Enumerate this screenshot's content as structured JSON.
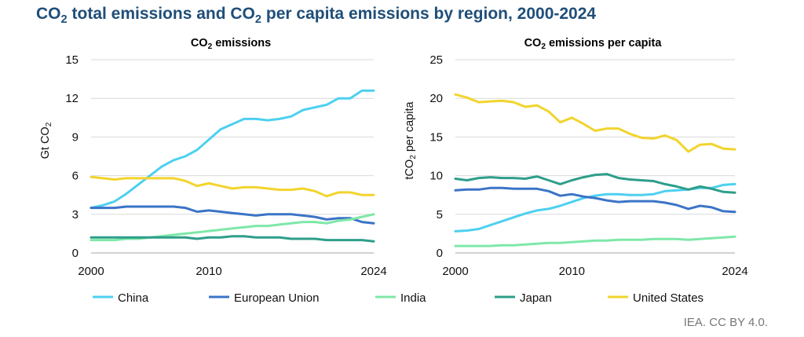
{
  "title": {
    "part1": "CO",
    "sub": "2",
    "part2": " total emissions and CO",
    "sub2": "2",
    "part3": " per capita emissions by region, 2000-2024"
  },
  "source": "IEA. CC BY 4.0.",
  "colors": {
    "China": "#4dd0f0",
    "European Union": "#3b74c7",
    "India": "#7ee8a8",
    "Japan": "#2e9e8a",
    "United States": "#f2d42e",
    "grid": "#d9d9d9"
  },
  "legend": [
    "China",
    "European Union",
    "India",
    "Japan",
    "United States"
  ],
  "chart_data": [
    {
      "type": "line",
      "title": "CO₂ emissions",
      "ylabel": "Gt CO₂",
      "xlabel": "",
      "x": [
        2000,
        2001,
        2002,
        2003,
        2004,
        2005,
        2006,
        2007,
        2008,
        2009,
        2010,
        2011,
        2012,
        2013,
        2014,
        2015,
        2016,
        2017,
        2018,
        2019,
        2020,
        2021,
        2022,
        2023,
        2024
      ],
      "xticks": [
        2000,
        2010,
        2024
      ],
      "ylim": [
        0,
        15
      ],
      "yticks": [
        0,
        3,
        6,
        9,
        12,
        15
      ],
      "grid": true,
      "legend_position": "bottom",
      "series": [
        {
          "name": "China",
          "values": [
            3.5,
            3.7,
            4.0,
            4.6,
            5.3,
            6.0,
            6.7,
            7.2,
            7.5,
            8.0,
            8.8,
            9.6,
            10.0,
            10.4,
            10.4,
            10.3,
            10.4,
            10.6,
            11.1,
            11.3,
            11.5,
            12.0,
            12.0,
            12.6,
            12.6
          ]
        },
        {
          "name": "European Union",
          "values": [
            3.5,
            3.5,
            3.5,
            3.6,
            3.6,
            3.6,
            3.6,
            3.6,
            3.5,
            3.2,
            3.3,
            3.2,
            3.1,
            3.0,
            2.9,
            3.0,
            3.0,
            3.0,
            2.9,
            2.8,
            2.6,
            2.7,
            2.7,
            2.4,
            2.3
          ]
        },
        {
          "name": "India",
          "values": [
            1.0,
            1.0,
            1.0,
            1.1,
            1.1,
            1.2,
            1.3,
            1.4,
            1.5,
            1.6,
            1.7,
            1.8,
            1.9,
            2.0,
            2.1,
            2.1,
            2.2,
            2.3,
            2.4,
            2.4,
            2.3,
            2.5,
            2.6,
            2.8,
            3.0
          ]
        },
        {
          "name": "Japan",
          "values": [
            1.2,
            1.2,
            1.2,
            1.2,
            1.2,
            1.2,
            1.2,
            1.2,
            1.2,
            1.1,
            1.2,
            1.2,
            1.3,
            1.3,
            1.2,
            1.2,
            1.2,
            1.1,
            1.1,
            1.1,
            1.0,
            1.0,
            1.0,
            1.0,
            0.9
          ]
        },
        {
          "name": "United States",
          "values": [
            5.9,
            5.8,
            5.7,
            5.8,
            5.8,
            5.8,
            5.8,
            5.8,
            5.6,
            5.2,
            5.4,
            5.2,
            5.0,
            5.1,
            5.1,
            5.0,
            4.9,
            4.9,
            5.0,
            4.8,
            4.4,
            4.7,
            4.7,
            4.5,
            4.5
          ]
        }
      ]
    },
    {
      "type": "line",
      "title": "CO₂ emissions per capita",
      "ylabel": "tCO₂ per capita",
      "xlabel": "",
      "x": [
        2000,
        2001,
        2002,
        2003,
        2004,
        2005,
        2006,
        2007,
        2008,
        2009,
        2010,
        2011,
        2012,
        2013,
        2014,
        2015,
        2016,
        2017,
        2018,
        2019,
        2020,
        2021,
        2022,
        2023,
        2024
      ],
      "xticks": [
        2000,
        2010,
        2024
      ],
      "ylim": [
        0,
        25
      ],
      "yticks": [
        0,
        5,
        10,
        15,
        20,
        25
      ],
      "grid": true,
      "legend_position": "bottom",
      "series": [
        {
          "name": "China",
          "values": [
            2.8,
            2.9,
            3.1,
            3.6,
            4.1,
            4.6,
            5.1,
            5.5,
            5.7,
            6.1,
            6.6,
            7.1,
            7.4,
            7.6,
            7.6,
            7.5,
            7.5,
            7.6,
            8.0,
            8.1,
            8.2,
            8.4,
            8.4,
            8.8,
            8.9
          ]
        },
        {
          "name": "European Union",
          "values": [
            8.1,
            8.2,
            8.2,
            8.4,
            8.4,
            8.3,
            8.3,
            8.3,
            8.0,
            7.4,
            7.6,
            7.3,
            7.1,
            6.8,
            6.6,
            6.7,
            6.7,
            6.7,
            6.5,
            6.2,
            5.7,
            6.1,
            5.9,
            5.4,
            5.3
          ]
        },
        {
          "name": "India",
          "values": [
            0.9,
            0.9,
            0.9,
            0.9,
            1.0,
            1.0,
            1.1,
            1.2,
            1.3,
            1.3,
            1.4,
            1.5,
            1.6,
            1.6,
            1.7,
            1.7,
            1.7,
            1.8,
            1.8,
            1.8,
            1.7,
            1.8,
            1.9,
            2.0,
            2.1
          ]
        },
        {
          "name": "Japan",
          "values": [
            9.6,
            9.4,
            9.7,
            9.8,
            9.7,
            9.7,
            9.6,
            9.9,
            9.4,
            8.9,
            9.4,
            9.8,
            10.1,
            10.2,
            9.7,
            9.5,
            9.4,
            9.3,
            8.9,
            8.6,
            8.2,
            8.6,
            8.3,
            7.9,
            7.8
          ]
        },
        {
          "name": "United States",
          "values": [
            20.5,
            20.1,
            19.5,
            19.6,
            19.7,
            19.5,
            18.9,
            19.1,
            18.3,
            16.9,
            17.5,
            16.7,
            15.8,
            16.1,
            16.1,
            15.4,
            14.9,
            14.8,
            15.2,
            14.6,
            13.1,
            14.0,
            14.1,
            13.5,
            13.4
          ]
        }
      ]
    }
  ]
}
